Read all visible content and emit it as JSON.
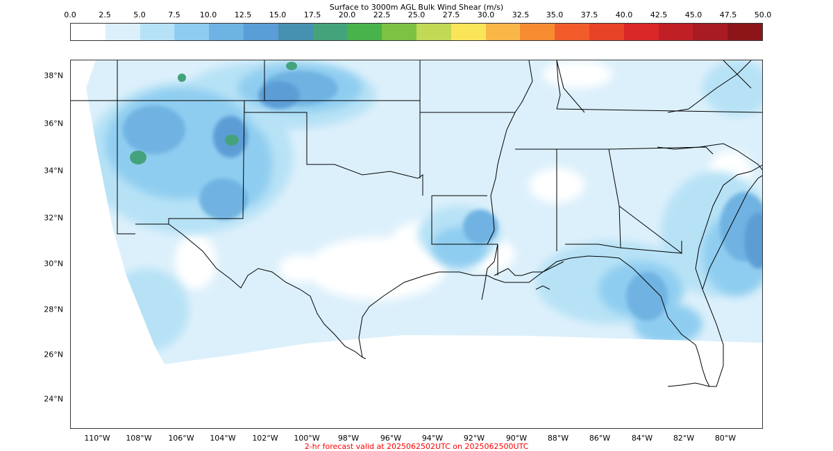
{
  "title": "Surface to 3000m AGL Bulk Wind Shear (m/s)",
  "colorbar": {
    "ticks": [
      "0.0",
      "2.5",
      "5.0",
      "7.5",
      "10.0",
      "12.5",
      "15.0",
      "17.5",
      "20.0",
      "22.5",
      "25.0",
      "27.5",
      "30.0",
      "32.5",
      "35.0",
      "37.5",
      "40.0",
      "42.5",
      "45.0",
      "47.5",
      "50.0"
    ],
    "colors": [
      "#ffffff",
      "#dcf0fb",
      "#b7e2f6",
      "#8fcdf0",
      "#6fb3e2",
      "#5b9dd6",
      "#4791b0",
      "#44a37c",
      "#48b34b",
      "#7dc243",
      "#c2d955",
      "#fae55a",
      "#f9b748",
      "#f78b31",
      "#f15c2a",
      "#e84227",
      "#d92827",
      "#c01f25",
      "#a81b23",
      "#8d1519"
    ]
  },
  "axes": {
    "lat_labels": [
      "38°N",
      "36°N",
      "34°N",
      "32°N",
      "30°N",
      "28°N",
      "26°N",
      "24°N"
    ],
    "lon_labels": [
      "110°W",
      "108°W",
      "106°W",
      "104°W",
      "102°W",
      "100°W",
      "98°W",
      "96°W",
      "94°W",
      "92°W",
      "90°W",
      "88°W",
      "86°W",
      "84°W",
      "82°W",
      "80°W"
    ]
  },
  "footer": {
    "text": "2-hr forecast valid at 2025062502UTC on 2025062500UTC",
    "color": "#ff0000"
  },
  "map_colors": {
    "background": "#ffffff",
    "border": "#000000"
  }
}
